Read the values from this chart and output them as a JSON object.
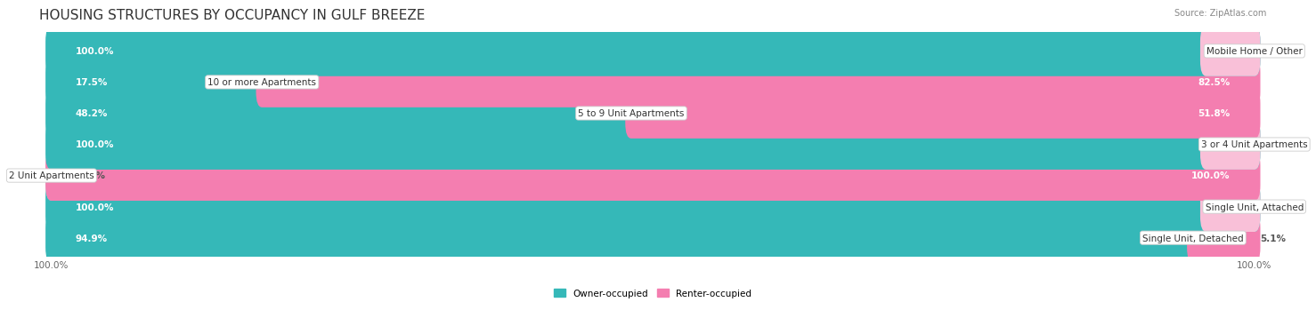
{
  "title": "HOUSING STRUCTURES BY OCCUPANCY IN GULF BREEZE",
  "source": "Source: ZipAtlas.com",
  "categories": [
    "Single Unit, Detached",
    "Single Unit, Attached",
    "2 Unit Apartments",
    "3 or 4 Unit Apartments",
    "5 to 9 Unit Apartments",
    "10 or more Apartments",
    "Mobile Home / Other"
  ],
  "owner_pct": [
    94.9,
    100.0,
    0.0,
    100.0,
    48.2,
    17.5,
    100.0
  ],
  "renter_pct": [
    5.1,
    0.0,
    100.0,
    0.0,
    51.8,
    82.5,
    0.0
  ],
  "owner_color": "#35b8b8",
  "renter_color": "#f47eb0",
  "owner_stub_color": "#a0d8d8",
  "renter_stub_color": "#f9c0d8",
  "bar_height": 0.62,
  "row_even_color": "#efefef",
  "row_odd_color": "#e5e5e5",
  "title_fontsize": 11,
  "label_fontsize": 7.5,
  "pct_fontsize": 7.5,
  "source_fontsize": 7
}
